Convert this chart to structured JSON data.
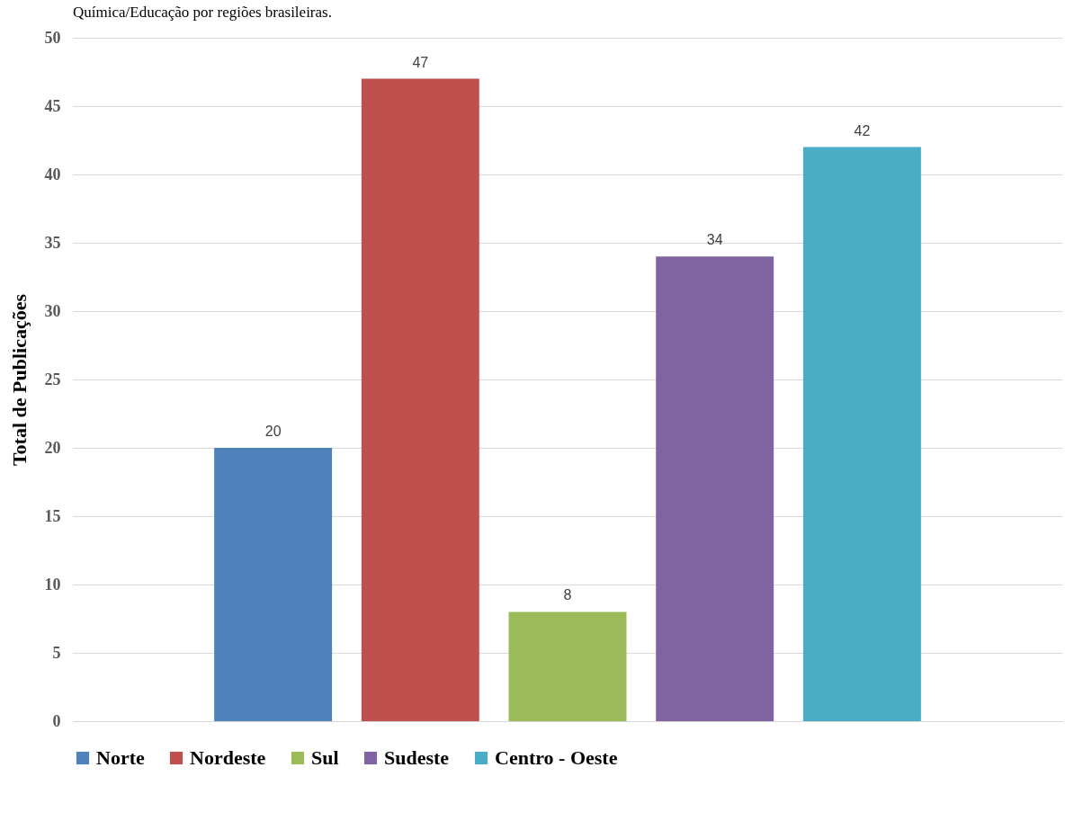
{
  "chart_data": {
    "type": "bar",
    "title": "Química/Educação por regiões brasileiras.",
    "ylabel": "Total de Publicações",
    "categories": [
      null
    ],
    "series": [
      {
        "name": "Norte",
        "color": "#4f81bd",
        "values": [
          20
        ]
      },
      {
        "name": "Nordeste",
        "color": "#c0504d",
        "values": [
          47
        ]
      },
      {
        "name": "Sul",
        "color": "#9bbb59",
        "values": [
          8
        ]
      },
      {
        "name": "Sudeste",
        "color": "#8064a2",
        "values": [
          34
        ]
      },
      {
        "name": "Centro - Oeste",
        "color": "#4bacc6",
        "values": [
          42
        ]
      }
    ],
    "ylim": [
      0,
      50
    ],
    "yticks": [
      0,
      5,
      10,
      15,
      20,
      25,
      30,
      35,
      40,
      45,
      50
    ],
    "grid": "y",
    "legend": "bottom",
    "data_labels": true
  }
}
